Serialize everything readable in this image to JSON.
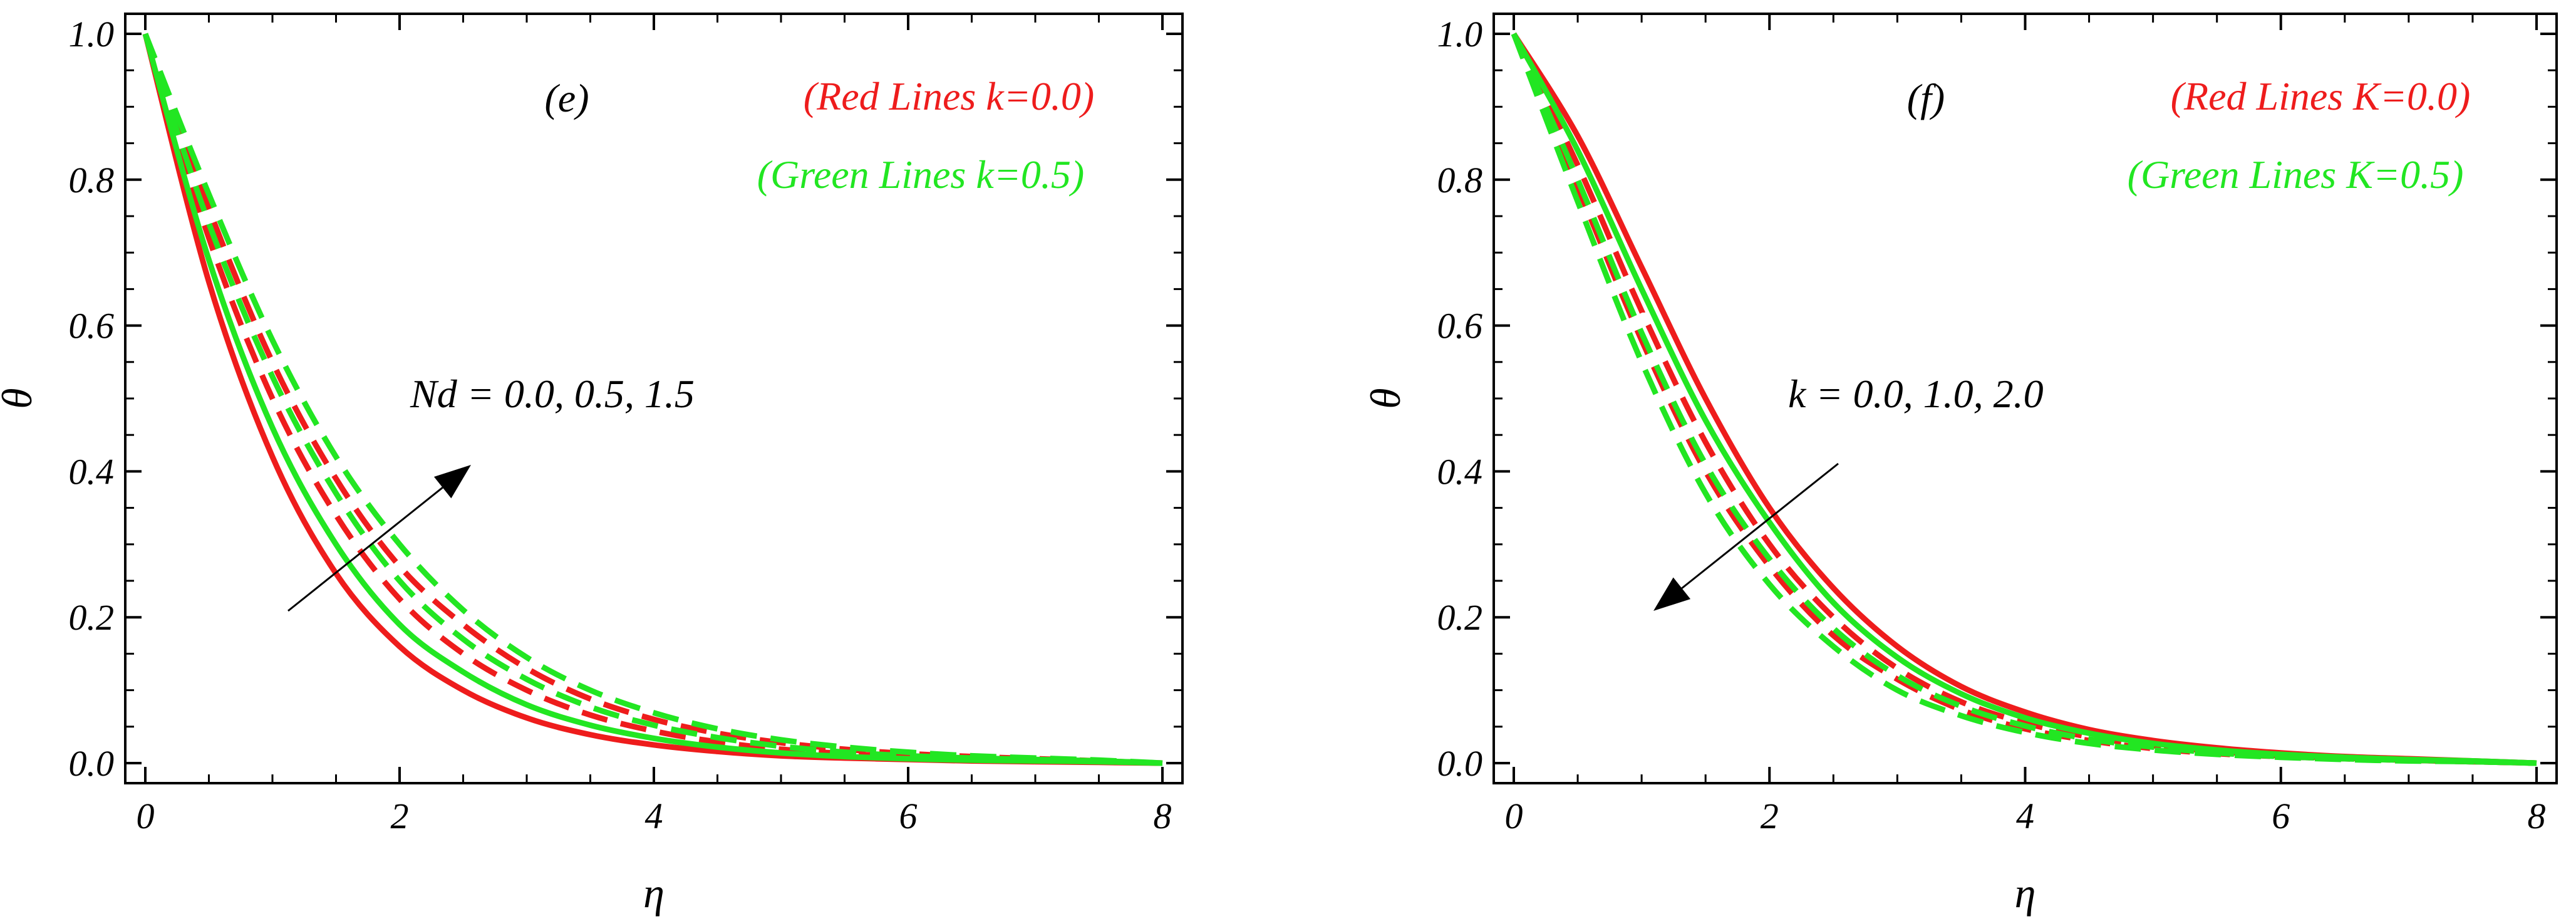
{
  "colors": {
    "red": "#ee1c1c",
    "green": "#22e622",
    "axis": "#000000"
  },
  "chart_data": [
    {
      "type": "line",
      "panel_label": "(e)",
      "xlabel": "η",
      "ylabel": "θ",
      "xlim": [
        0,
        8
      ],
      "ylim": [
        0,
        1
      ],
      "x_ticks": [
        "0",
        "2",
        "4",
        "6",
        "8"
      ],
      "y_ticks": [
        "0.0",
        "0.2",
        "0.4",
        "0.6",
        "0.8",
        "1.0"
      ],
      "legend": {
        "red": "(Red Lines k=0.0)",
        "green": "(Green Lines k=0.5)",
        "placement": "top-right"
      },
      "annotation": {
        "text": "Nd = 0.0, 0.5, 1.5",
        "arrow": "increasing"
      },
      "x": [
        0,
        0.5,
        1,
        1.5,
        2,
        2.5,
        3,
        3.5,
        4,
        4.5,
        5,
        5.5,
        6,
        6.5,
        7,
        7.5,
        8
      ],
      "series": [
        {
          "color": "red",
          "dash": false,
          "values": [
            1.0,
            0.66,
            0.42,
            0.26,
            0.16,
            0.1,
            0.062,
            0.039,
            0.025,
            0.016,
            0.01,
            0.007,
            0.005,
            0.003,
            0.002,
            0.001,
            0.0
          ]
        },
        {
          "color": "red",
          "dash": true,
          "values": [
            1.0,
            0.72,
            0.5,
            0.34,
            0.225,
            0.15,
            0.1,
            0.066,
            0.044,
            0.029,
            0.019,
            0.013,
            0.009,
            0.006,
            0.004,
            0.002,
            0.0
          ]
        },
        {
          "color": "red",
          "dash": true,
          "values": [
            1.0,
            0.76,
            0.55,
            0.39,
            0.27,
            0.19,
            0.13,
            0.088,
            0.06,
            0.041,
            0.028,
            0.019,
            0.013,
            0.009,
            0.006,
            0.003,
            0.0
          ]
        },
        {
          "color": "green",
          "dash": false,
          "values": [
            1.0,
            0.69,
            0.46,
            0.3,
            0.19,
            0.125,
            0.08,
            0.052,
            0.034,
            0.022,
            0.014,
            0.009,
            0.006,
            0.004,
            0.003,
            0.002,
            0.0
          ]
        },
        {
          "color": "green",
          "dash": true,
          "values": [
            1.0,
            0.74,
            0.53,
            0.37,
            0.25,
            0.17,
            0.115,
            0.077,
            0.052,
            0.035,
            0.023,
            0.015,
            0.01,
            0.007,
            0.005,
            0.003,
            0.0
          ]
        },
        {
          "color": "green",
          "dash": true,
          "values": [
            1.0,
            0.78,
            0.58,
            0.42,
            0.3,
            0.21,
            0.145,
            0.1,
            0.069,
            0.047,
            0.032,
            0.022,
            0.015,
            0.01,
            0.007,
            0.004,
            0.0
          ]
        }
      ]
    },
    {
      "type": "line",
      "panel_label": "(f)",
      "xlabel": "η",
      "ylabel": "θ",
      "xlim": [
        0,
        8
      ],
      "ylim": [
        0,
        1
      ],
      "x_ticks": [
        "0",
        "2",
        "4",
        "6",
        "8"
      ],
      "y_ticks": [
        "0.0",
        "0.2",
        "0.4",
        "0.6",
        "0.8",
        "1.0"
      ],
      "legend": {
        "red": "(Red Lines K=0.0)",
        "green": "(Green Lines K=0.5)",
        "placement": "top-right"
      },
      "annotation": {
        "text": "k = 0.0, 1.0, 2.0",
        "arrow": "decreasing"
      },
      "x": [
        0,
        0.5,
        1,
        1.5,
        2,
        2.5,
        3,
        3.5,
        4,
        4.5,
        5,
        5.5,
        6,
        6.5,
        7,
        7.5,
        8
      ],
      "series": [
        {
          "color": "red",
          "dash": false,
          "values": [
            1.0,
            0.86,
            0.68,
            0.5,
            0.35,
            0.24,
            0.16,
            0.105,
            0.07,
            0.046,
            0.031,
            0.021,
            0.014,
            0.009,
            0.006,
            0.003,
            0.0
          ]
        },
        {
          "color": "red",
          "dash": true,
          "values": [
            1.0,
            0.82,
            0.62,
            0.44,
            0.3,
            0.2,
            0.13,
            0.084,
            0.055,
            0.036,
            0.024,
            0.016,
            0.01,
            0.007,
            0.004,
            0.002,
            0.0
          ]
        },
        {
          "color": "red",
          "dash": true,
          "values": [
            1.0,
            0.79,
            0.58,
            0.4,
            0.27,
            0.175,
            0.115,
            0.073,
            0.047,
            0.031,
            0.02,
            0.013,
            0.009,
            0.006,
            0.004,
            0.002,
            0.0
          ]
        },
        {
          "color": "green",
          "dash": false,
          "values": [
            1.0,
            0.84,
            0.65,
            0.47,
            0.33,
            0.22,
            0.145,
            0.095,
            0.062,
            0.041,
            0.027,
            0.018,
            0.012,
            0.008,
            0.005,
            0.003,
            0.0
          ]
        },
        {
          "color": "green",
          "dash": true,
          "values": [
            1.0,
            0.8,
            0.59,
            0.41,
            0.28,
            0.185,
            0.12,
            0.078,
            0.051,
            0.033,
            0.022,
            0.014,
            0.009,
            0.006,
            0.004,
            0.002,
            0.0
          ]
        },
        {
          "color": "green",
          "dash": true,
          "values": [
            1.0,
            0.77,
            0.55,
            0.37,
            0.245,
            0.16,
            0.1,
            0.065,
            0.042,
            0.027,
            0.018,
            0.012,
            0.008,
            0.005,
            0.003,
            0.002,
            0.0
          ]
        }
      ]
    }
  ]
}
